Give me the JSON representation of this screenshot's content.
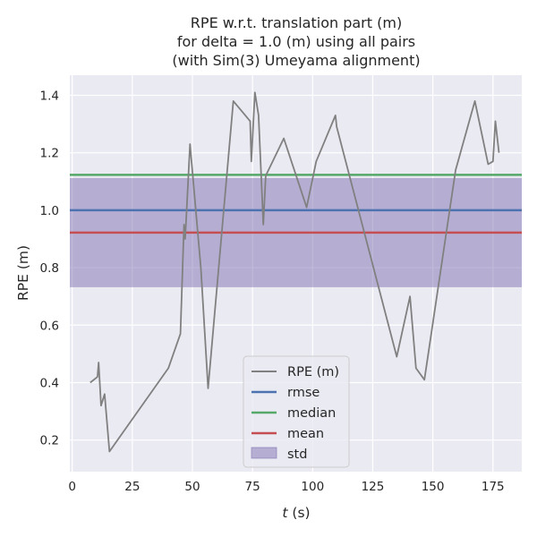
{
  "chart_data": {
    "type": "line",
    "title_lines": [
      "RPE w.r.t. translation part (m)",
      "for delta = 1.0 (m) using all pairs",
      "(with Sim(3) Umeyama alignment)"
    ],
    "xlabel_var": "t",
    "xlabel_unit": " (s)",
    "ylabel": "RPE (m)",
    "xlim": [
      -1,
      187
    ],
    "ylim": [
      0.09,
      1.47
    ],
    "xticks": [
      0,
      25,
      50,
      75,
      100,
      125,
      150,
      175
    ],
    "yticks": [
      0.2,
      0.4,
      0.6,
      0.8,
      1.0,
      1.2,
      1.4
    ],
    "xtick_labels": [
      "0",
      "25",
      "50",
      "75",
      "100",
      "125",
      "150",
      "175"
    ],
    "ytick_labels": [
      "0.2",
      "0.4",
      "0.6",
      "0.8",
      "1.0",
      "1.2",
      "1.4"
    ],
    "grid": true,
    "legend_position": "lower center",
    "series": [
      {
        "name": "RPE (m)",
        "color": "#808080",
        "x": [
          7.5,
          10.5,
          11.0,
          12.0,
          13.5,
          15.5,
          40.0,
          45.0,
          46.5,
          47.0,
          49.0,
          53.5,
          56.5,
          67.0,
          74.0,
          74.5,
          76.0,
          77.5,
          79.5,
          80.5,
          88.0,
          97.5,
          101.5,
          109.5,
          110.0,
          135.0,
          140.5,
          143.0,
          146.5,
          159.5,
          167.5,
          173.0,
          175.0,
          176.0,
          177.5
        ],
        "y": [
          0.4,
          0.42,
          0.47,
          0.32,
          0.36,
          0.16,
          0.45,
          0.57,
          0.95,
          0.9,
          1.23,
          0.8,
          0.38,
          1.38,
          1.31,
          1.17,
          1.41,
          1.33,
          0.95,
          1.12,
          1.25,
          1.01,
          1.17,
          1.33,
          1.29,
          0.49,
          0.7,
          0.45,
          0.41,
          1.14,
          1.38,
          1.16,
          1.17,
          1.31,
          1.2
        ]
      }
    ],
    "stats": {
      "rmse": 1.0,
      "median": 1.123,
      "mean": 0.922,
      "std": 0.19
    },
    "stat_colors": {
      "rmse": "#4c72b0",
      "median": "#55a868",
      "mean": "#c44e52",
      "std": "#8172b2"
    },
    "legend": {
      "rpe": "RPE (m)",
      "rmse": "rmse",
      "median": "median",
      "mean": "mean",
      "std": "std"
    }
  }
}
